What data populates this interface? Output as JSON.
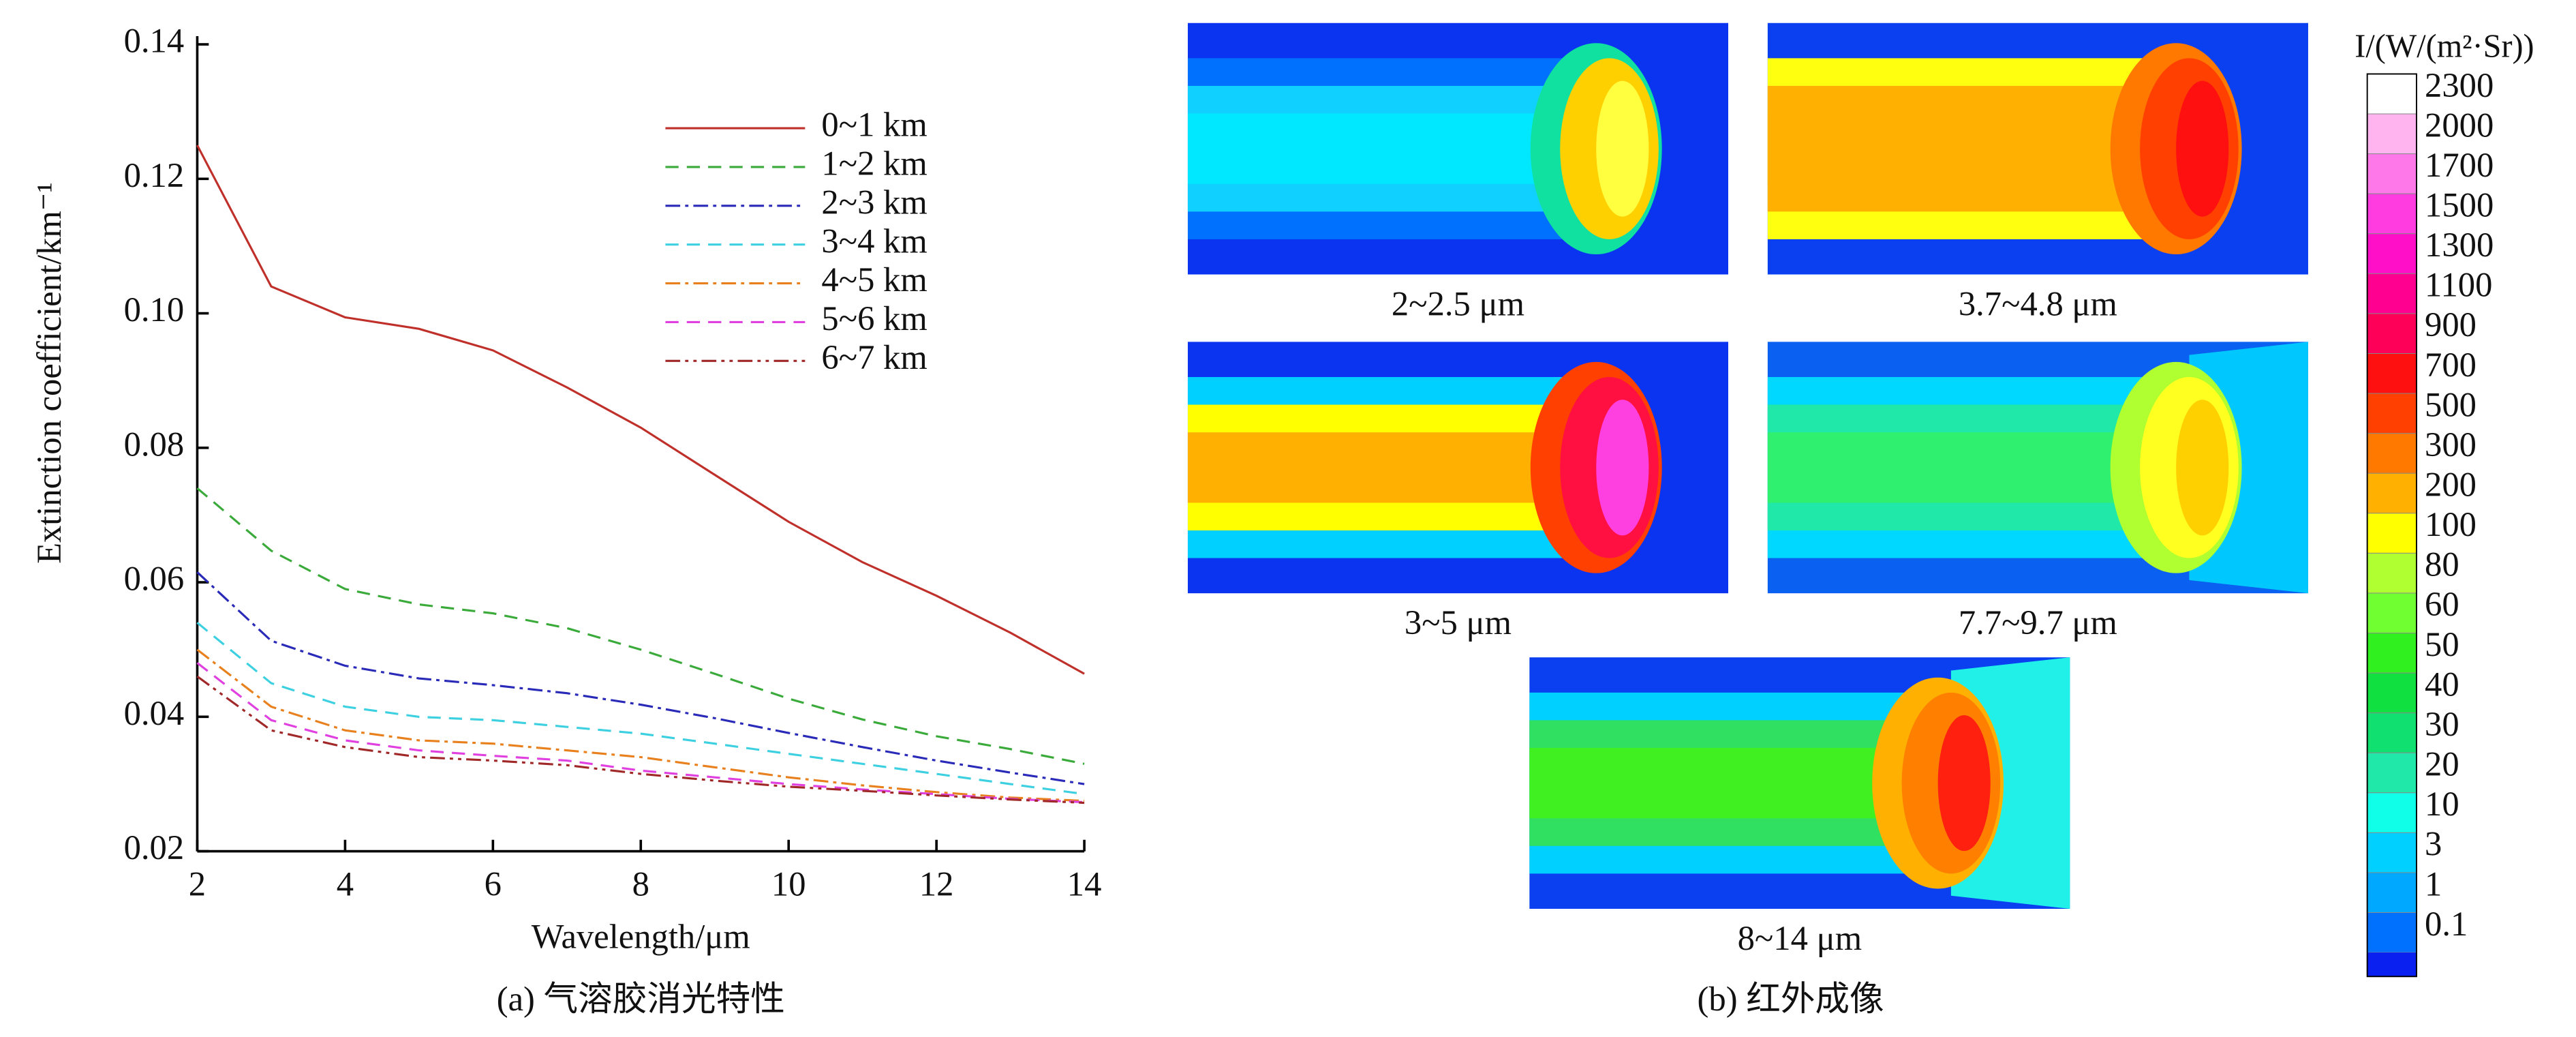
{
  "chart_data": [
    {
      "type": "line",
      "xlabel": "Wavelength/μm",
      "ylabel": "Extinction coefficient/km⁻¹",
      "caption": "(a) 气溶胶消光特性",
      "x": [
        2,
        3,
        4,
        5,
        6,
        7,
        8,
        9,
        10,
        11,
        12,
        13,
        14
      ],
      "xlim": [
        2,
        14
      ],
      "xticks": [
        2,
        4,
        6,
        8,
        10,
        12,
        14
      ],
      "ylim": [
        0.02,
        0.14
      ],
      "yticks": [
        0.02,
        0.04,
        0.06,
        0.08,
        {
          "value": 0.1,
          "label": "0.10"
        },
        0.12,
        0.14
      ],
      "series": [
        {
          "name": "0~1 km",
          "color": "#c0302a",
          "dash": "solid",
          "values": [
            0.125,
            0.104,
            0.0994,
            0.0977,
            0.0945,
            0.089,
            0.083,
            0.076,
            0.069,
            0.063,
            0.058,
            0.0525,
            0.0464
          ]
        },
        {
          "name": "1~2 km",
          "color": "#3aaa3a",
          "dash": "dash",
          "values": [
            0.074,
            0.0647,
            0.059,
            0.0567,
            0.0554,
            0.0532,
            0.05,
            0.0464,
            0.0427,
            0.0396,
            0.0371,
            0.0352,
            0.033
          ]
        },
        {
          "name": "2~3 km",
          "color": "#2a2ab8",
          "dash": "dashdot",
          "values": [
            0.0615,
            0.0513,
            0.0476,
            0.0457,
            0.0447,
            0.0435,
            0.0418,
            0.0398,
            0.0376,
            0.0355,
            0.0335,
            0.0317,
            0.03
          ]
        },
        {
          "name": "3~4 km",
          "color": "#3cd0e0",
          "dash": "dash",
          "values": [
            0.054,
            0.045,
            0.0415,
            0.04,
            0.0395,
            0.0385,
            0.0375,
            0.036,
            0.0345,
            0.033,
            0.0315,
            0.03,
            0.0285
          ]
        },
        {
          "name": "4~5 km",
          "color": "#e8801e",
          "dash": "dashdot",
          "values": [
            0.05,
            0.0415,
            0.038,
            0.0365,
            0.036,
            0.035,
            0.034,
            0.0325,
            0.031,
            0.0298,
            0.0288,
            0.028,
            0.0275
          ]
        },
        {
          "name": "5~6 km",
          "color": "#e040e0",
          "dash": "dash",
          "values": [
            0.048,
            0.0395,
            0.0365,
            0.035,
            0.0342,
            0.0335,
            0.032,
            0.031,
            0.03,
            0.0292,
            0.0285,
            0.0278,
            0.0273
          ]
        },
        {
          "name": "6~7 km",
          "color": "#a02828",
          "dash": "dashdotdot",
          "values": [
            0.046,
            0.038,
            0.0355,
            0.034,
            0.0335,
            0.0328,
            0.0315,
            0.0305,
            0.0296,
            0.029,
            0.0283,
            0.0277,
            0.0272
          ]
        }
      ]
    },
    {
      "type": "image-panels",
      "panels": [
        "2~2.5 μm",
        "3.7~4.8 μm",
        "3~5 μm",
        "7.7~9.7 μm",
        "8~14 μm"
      ],
      "caption": "(b) 红外成像",
      "colorbar": {
        "title": "I/(W/(m²·Sr))",
        "levels": [
          2300,
          2000,
          1700,
          1500,
          1300,
          1100,
          900,
          700,
          500,
          300,
          200,
          100,
          80,
          60,
          50,
          40,
          30,
          20,
          10,
          3,
          1,
          0.1
        ],
        "colors": [
          "#ffffff",
          "#ffb4f0",
          "#ff78ea",
          "#ff3ce0",
          "#ff10c8",
          "#ff0090",
          "#ff0058",
          "#ff1010",
          "#ff4000",
          "#ff7800",
          "#ffb000",
          "#ffff00",
          "#b0ff30",
          "#70ff30",
          "#30f020",
          "#10e040",
          "#10e070",
          "#20e8a8",
          "#10ffe8",
          "#00d0ff",
          "#00a8ff",
          "#0070ff"
        ]
      }
    }
  ]
}
